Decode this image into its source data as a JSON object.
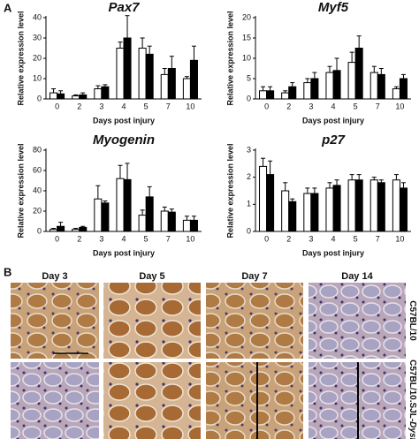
{
  "chart_data": [
    {
      "type": "bar",
      "title": "Pax7",
      "ylabel": "Relative expression level",
      "xlabel": "Days post injury",
      "categories": [
        "0",
        "2",
        "3",
        "4",
        "5",
        "7",
        "10"
      ],
      "ylim": [
        0,
        40
      ],
      "yticks": [
        0,
        10,
        20,
        30,
        40
      ],
      "series": [
        {
          "color": "#ffffff",
          "values": [
            3,
            1.5,
            5,
            25,
            25,
            12,
            10
          ],
          "errors": [
            2,
            0.5,
            1.5,
            3,
            5,
            3,
            1
          ]
        },
        {
          "color": "#000000",
          "values": [
            2.5,
            2,
            6,
            30,
            22,
            15,
            19
          ],
          "errors": [
            1.5,
            1,
            1,
            11,
            4,
            6,
            7
          ]
        }
      ]
    },
    {
      "type": "bar",
      "title": "Myf5",
      "ylabel": "Relative expression level",
      "xlabel": "Days post injury",
      "categories": [
        "0",
        "2",
        "3",
        "4",
        "5",
        "7",
        "10"
      ],
      "ylim": [
        0,
        20
      ],
      "yticks": [
        0,
        5,
        10,
        15,
        20
      ],
      "series": [
        {
          "color": "#ffffff",
          "values": [
            2,
            1.5,
            4,
            6.5,
            9,
            6.5,
            2.5
          ],
          "errors": [
            1,
            0.5,
            1,
            1.5,
            2.5,
            1.5,
            0.5
          ]
        },
        {
          "color": "#000000",
          "values": [
            2,
            3,
            5,
            7,
            12.5,
            6,
            5
          ],
          "errors": [
            1,
            1,
            1.5,
            3,
            3,
            1.5,
            1
          ]
        }
      ]
    },
    {
      "type": "bar",
      "title": "Myogenin",
      "ylabel": "Relative expression level",
      "xlabel": "Days post injury",
      "categories": [
        "0",
        "2",
        "3",
        "4",
        "5",
        "7",
        "10"
      ],
      "ylim": [
        0,
        80
      ],
      "yticks": [
        0,
        20,
        40,
        60,
        80
      ],
      "series": [
        {
          "color": "#ffffff",
          "values": [
            2,
            2,
            32,
            52,
            16,
            20,
            11
          ],
          "errors": [
            1,
            1,
            13,
            13,
            5,
            4,
            4
          ]
        },
        {
          "color": "#000000",
          "values": [
            5,
            4,
            28,
            51,
            34,
            19,
            11
          ],
          "errors": [
            4,
            1,
            2,
            16,
            10,
            3,
            4
          ]
        }
      ]
    },
    {
      "type": "bar",
      "title": "p27",
      "ylabel": "Relative expression level",
      "xlabel": "Days post injury",
      "categories": [
        "0",
        "2",
        "3",
        "4",
        "5",
        "7",
        "10"
      ],
      "ylim": [
        0,
        3
      ],
      "yticks": [
        0,
        1,
        2,
        3
      ],
      "series": [
        {
          "color": "#ffffff",
          "values": [
            2.4,
            1.5,
            1.4,
            1.6,
            1.9,
            1.9,
            1.9
          ],
          "errors": [
            0.3,
            0.3,
            0.2,
            0.2,
            0.2,
            0.1,
            0.2
          ]
        },
        {
          "color": "#000000",
          "values": [
            2.1,
            1.1,
            1.4,
            1.7,
            1.9,
            1.8,
            1.6
          ],
          "errors": [
            0.5,
            0.1,
            0.2,
            0.2,
            0.2,
            0.1,
            0.2
          ]
        }
      ]
    }
  ],
  "panel_labels": [
    "A",
    "B"
  ],
  "panel_b": {
    "columns": [
      "Day 3",
      "Day 5",
      "Day 7",
      "Day 14"
    ],
    "rows": [
      {
        "label": "C57BL/10"
      },
      {
        "label": "C57BL/10.SJL-",
        "italic": "Dysf"
      }
    ]
  }
}
